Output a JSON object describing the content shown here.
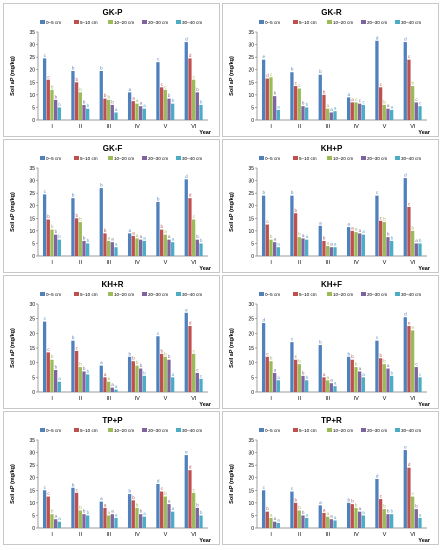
{
  "legend": [
    "0–5 cm",
    "5–10 cm",
    "10–20 cm",
    "20–30 cm",
    "30–40 cm"
  ],
  "colors": [
    "#4f81bd",
    "#c0504d",
    "#9bbb59",
    "#8064a2",
    "#4bacc6"
  ],
  "ylabel": "Soil aP (mg/kg)",
  "xlabel": "Year",
  "chart_data": [
    {
      "type": "bar",
      "title": "GK-P",
      "categories": [
        "I",
        "II",
        "III",
        "IV",
        "V",
        "VI"
      ],
      "ylim": [
        0,
        35
      ],
      "yticks": [
        0,
        5,
        10,
        15,
        20,
        25,
        30,
        35
      ],
      "series": [
        {
          "name": "0–5 cm",
          "values": [
            24.5,
            19.5,
            19.5,
            11,
            23,
            31
          ]
        },
        {
          "name": "5–10 cm",
          "values": [
            16,
            15,
            8.5,
            7.5,
            13,
            24.5
          ]
        },
        {
          "name": "10–20 cm",
          "values": [
            12,
            11,
            8,
            6.5,
            12,
            16
          ]
        },
        {
          "name": "20–30 cm",
          "values": [
            8,
            6,
            6,
            5.5,
            8.5,
            11
          ]
        },
        {
          "name": "30–40 cm",
          "values": [
            5,
            4.5,
            3,
            4.5,
            6.5,
            6
          ]
        }
      ],
      "labels": [
        [
          "c",
          "c",
          "b",
          "b",
          "b"
        ],
        [
          "b",
          "b",
          "b",
          "b",
          "b"
        ],
        [
          "b",
          "b",
          "b",
          "b",
          "a"
        ],
        [
          "a",
          "a",
          "a",
          "a",
          "a"
        ],
        [
          "c",
          "c",
          "c",
          "b",
          "b"
        ],
        [
          "d",
          "d",
          "c",
          "b",
          "b"
        ]
      ]
    },
    {
      "type": "bar",
      "title": "GK-R",
      "categories": [
        "I",
        "II",
        "III",
        "IV",
        "V",
        "VI"
      ],
      "ylim": [
        0,
        35
      ],
      "yticks": [
        0,
        5,
        10,
        15,
        20,
        25,
        30,
        35
      ],
      "series": [
        {
          "name": "0–5 cm",
          "values": [
            24,
            19,
            18,
            9,
            31.5,
            31
          ]
        },
        {
          "name": "5–10 cm",
          "values": [
            16.5,
            13.5,
            10,
            7,
            13,
            24
          ]
        },
        {
          "name": "10–20 cm",
          "values": [
            17,
            12.5,
            4.5,
            7,
            6,
            13.5
          ]
        },
        {
          "name": "20–30 cm",
          "values": [
            9.5,
            5.5,
            3,
            6.5,
            4.5,
            7
          ]
        },
        {
          "name": "30–40 cm",
          "values": [
            4,
            5,
            3.5,
            6,
            4,
            5.5
          ]
        }
      ],
      "labels": [
        [
          "e",
          "d",
          "c",
          "b",
          "a"
        ],
        [
          "b",
          "c",
          "c",
          "b",
          "b"
        ],
        [
          "b",
          "b",
          "a",
          "a",
          "a"
        ],
        [
          "a",
          "a",
          "c",
          "c",
          "c"
        ],
        [
          "d",
          "c",
          "b",
          "a",
          "a"
        ],
        [
          "d",
          "c",
          "b",
          "c",
          "c"
        ]
      ]
    },
    {
      "type": "bar",
      "title": "GK-F",
      "categories": [
        "I",
        "II",
        "III",
        "IV",
        "V",
        "VI"
      ],
      "ylim": [
        0,
        35
      ],
      "yticks": [
        0,
        5,
        10,
        15,
        20,
        25,
        30,
        35
      ],
      "series": [
        {
          "name": "0–5 cm",
          "values": [
            24.5,
            23,
            27,
            9,
            21.5,
            30.5
          ]
        },
        {
          "name": "5–10 cm",
          "values": [
            14.5,
            15,
            9,
            8,
            10.5,
            23
          ]
        },
        {
          "name": "10–20 cm",
          "values": [
            10.5,
            13.5,
            6,
            7,
            8.5,
            14.5
          ]
        },
        {
          "name": "20–30 cm",
          "values": [
            8.5,
            6,
            5.5,
            6.5,
            6.5,
            6.5
          ]
        },
        {
          "name": "30–40 cm",
          "values": [
            6.5,
            5,
            3.5,
            6,
            5.5,
            5
          ]
        }
      ],
      "labels": [
        [
          "c",
          "b",
          "b",
          "b",
          "b"
        ],
        [
          "b",
          "b",
          "b",
          "b",
          "b"
        ],
        [
          "b",
          "b",
          "a",
          "a",
          "a"
        ],
        [
          "a",
          "a",
          "a",
          "a",
          "a"
        ],
        [
          "b",
          "b",
          "a",
          "a",
          "a"
        ],
        [
          "d",
          "d",
          "c",
          "b",
          "b"
        ]
      ]
    },
    {
      "type": "bar",
      "title": "KH+P",
      "categories": [
        "I",
        "II",
        "III",
        "IV",
        "V",
        "VI"
      ],
      "ylim": [
        0,
        35
      ],
      "yticks": [
        0,
        5,
        10,
        15,
        20,
        25,
        30,
        35
      ],
      "series": [
        {
          "name": "0–5 cm",
          "values": [
            24,
            24,
            12,
            11.5,
            24,
            31
          ]
        },
        {
          "name": "5–10 cm",
          "values": [
            12.5,
            17,
            6,
            10,
            14,
            19.5
          ]
        },
        {
          "name": "10–20 cm",
          "values": [
            6.5,
            7.5,
            4,
            9.5,
            13.5,
            10
          ]
        },
        {
          "name": "20–30 cm",
          "values": [
            5.5,
            7,
            3.5,
            9,
            7.5,
            5
          ]
        },
        {
          "name": "30–40 cm",
          "values": [
            3.5,
            6.5,
            3.5,
            8.5,
            6,
            5
          ]
        }
      ],
      "labels": [
        [
          "b",
          "c",
          "b",
          "a",
          "a"
        ],
        [
          "b",
          "b",
          "b",
          "a",
          "a"
        ],
        [
          "a",
          "b",
          "a",
          "a",
          "a"
        ],
        [
          "a",
          "a",
          "a",
          "a",
          "a"
        ],
        [
          "c",
          "c",
          "b",
          "b",
          "b"
        ],
        [
          "d",
          "c",
          "b",
          "a",
          "b"
        ]
      ]
    },
    {
      "type": "bar",
      "title": "KH+R",
      "categories": [
        "I",
        "II",
        "III",
        "IV",
        "V",
        "VI"
      ],
      "ylim": [
        0,
        30
      ],
      "yticks": [
        0,
        5,
        10,
        15,
        20,
        25,
        30
      ],
      "series": [
        {
          "name": "0–5 cm",
          "values": [
            24,
            17.5,
            9,
            12,
            19,
            27
          ]
        },
        {
          "name": "5–10 cm",
          "values": [
            13.5,
            14,
            5,
            10.5,
            13,
            22.5
          ]
        },
        {
          "name": "10–20 cm",
          "values": [
            11,
            8.5,
            3.5,
            9,
            12,
            13
          ]
        },
        {
          "name": "20–30 cm",
          "values": [
            7.5,
            7,
            1.5,
            8,
            11,
            6.5
          ]
        },
        {
          "name": "30–40 cm",
          "values": [
            3.5,
            6,
            0.8,
            5.5,
            5,
            4.5
          ]
        }
      ],
      "labels": [
        [
          "c",
          "c",
          "b",
          "b",
          "a"
        ],
        [
          "b",
          "c",
          "b",
          "b",
          "b"
        ],
        [
          "a",
          "a",
          "a",
          "a",
          "a"
        ],
        [
          "b",
          "b",
          "b",
          "b",
          "b"
        ],
        [
          "c",
          "b",
          "b",
          "b",
          "a"
        ],
        [
          "e",
          "d",
          "c",
          "c",
          "c"
        ]
      ]
    },
    {
      "type": "bar",
      "title": "KH+F",
      "categories": [
        "I",
        "II",
        "III",
        "IV",
        "V",
        "VI"
      ],
      "ylim": [
        0,
        30
      ],
      "yticks": [
        0,
        5,
        10,
        15,
        20,
        25,
        30
      ],
      "series": [
        {
          "name": "0–5 cm",
          "values": [
            23.5,
            17,
            16,
            12,
            17.5,
            25.5
          ]
        },
        {
          "name": "5–10 cm",
          "values": [
            12,
            11,
            5,
            11,
            11.5,
            22.5
          ]
        },
        {
          "name": "10–20 cm",
          "values": [
            10.5,
            9.5,
            4,
            8.5,
            9.5,
            21
          ]
        },
        {
          "name": "20–30 cm",
          "values": [
            6.5,
            5.5,
            3,
            7,
            8,
            8.5
          ]
        },
        {
          "name": "30–40 cm",
          "values": [
            4,
            4,
            2,
            5,
            5.5,
            5
          ]
        }
      ],
      "labels": [
        [
          "d",
          "c",
          "b",
          "a",
          "a"
        ],
        [
          "c",
          "c",
          "b",
          "b",
          "b"
        ],
        [
          "b",
          "a",
          "a",
          "a",
          "a"
        ],
        [
          "b",
          "b",
          "b",
          "a",
          "a"
        ],
        [
          "c",
          "b",
          "b",
          "a",
          "b"
        ],
        [
          "d",
          "e",
          "e",
          "c",
          "c"
        ]
      ]
    },
    {
      "type": "bar",
      "title": "TP+P",
      "categories": [
        "I",
        "II",
        "III",
        "IV",
        "V",
        "VI"
      ],
      "ylim": [
        0,
        35
      ],
      "yticks": [
        0,
        5,
        10,
        15,
        20,
        25,
        30,
        35
      ],
      "series": [
        {
          "name": "0–5 cm",
          "values": [
            15,
            16,
            10.5,
            13.5,
            17.5,
            29
          ]
        },
        {
          "name": "5–10 cm",
          "values": [
            12.5,
            14,
            8,
            11,
            14.5,
            23
          ]
        },
        {
          "name": "10–20 cm",
          "values": [
            5.5,
            7,
            5,
            8,
            12.5,
            14
          ]
        },
        {
          "name": "20–30 cm",
          "values": [
            3.5,
            5.5,
            5.5,
            5.5,
            9.5,
            8
          ]
        },
        {
          "name": "30–40 cm",
          "values": [
            2.5,
            5,
            4,
            4.5,
            6.5,
            5
          ]
        }
      ],
      "labels": [
        [
          "c",
          "c",
          "b",
          "a",
          "a"
        ],
        [
          "b",
          "c",
          "b",
          "b",
          "b"
        ],
        [
          "a",
          "a",
          "a",
          "a",
          "a"
        ],
        [
          "b",
          "b",
          "b",
          "b",
          "a"
        ],
        [
          "d",
          "c",
          "b",
          "a",
          "a"
        ],
        [
          "e",
          "d",
          "c",
          "b",
          "b"
        ]
      ]
    },
    {
      "type": "bar",
      "title": "TP+R",
      "categories": [
        "I",
        "II",
        "III",
        "IV",
        "V",
        "VI"
      ],
      "ylim": [
        0,
        35
      ],
      "yticks": [
        0,
        5,
        10,
        15,
        20,
        25,
        30,
        35
      ],
      "series": [
        {
          "name": "0–5 cm",
          "values": [
            15,
            14.5,
            9,
            10,
            19.5,
            31
          ]
        },
        {
          "name": "5–10 cm",
          "values": [
            6.5,
            10,
            6,
            9.5,
            11.5,
            24
          ]
        },
        {
          "name": "10–20 cm",
          "values": [
            4,
            7,
            4.5,
            8,
            7.5,
            12.5
          ]
        },
        {
          "name": "20–30 cm",
          "values": [
            2.5,
            5,
            3.5,
            6.5,
            5.5,
            7.5
          ]
        },
        {
          "name": "30–40 cm",
          "values": [
            2,
            4,
            3,
            5,
            5.5,
            4
          ]
        }
      ],
      "labels": [
        [
          "c",
          "b",
          "a",
          "a",
          "a"
        ],
        [
          "c",
          "b",
          "b",
          "b",
          "a"
        ],
        [
          "a",
          "a",
          "a",
          "a",
          "a"
        ],
        [
          "b",
          "b",
          "b",
          "a",
          "a"
        ],
        [
          "d",
          "c",
          "b",
          "b",
          "b"
        ],
        [
          "e",
          "d",
          "c",
          "b",
          "a"
        ]
      ]
    }
  ]
}
